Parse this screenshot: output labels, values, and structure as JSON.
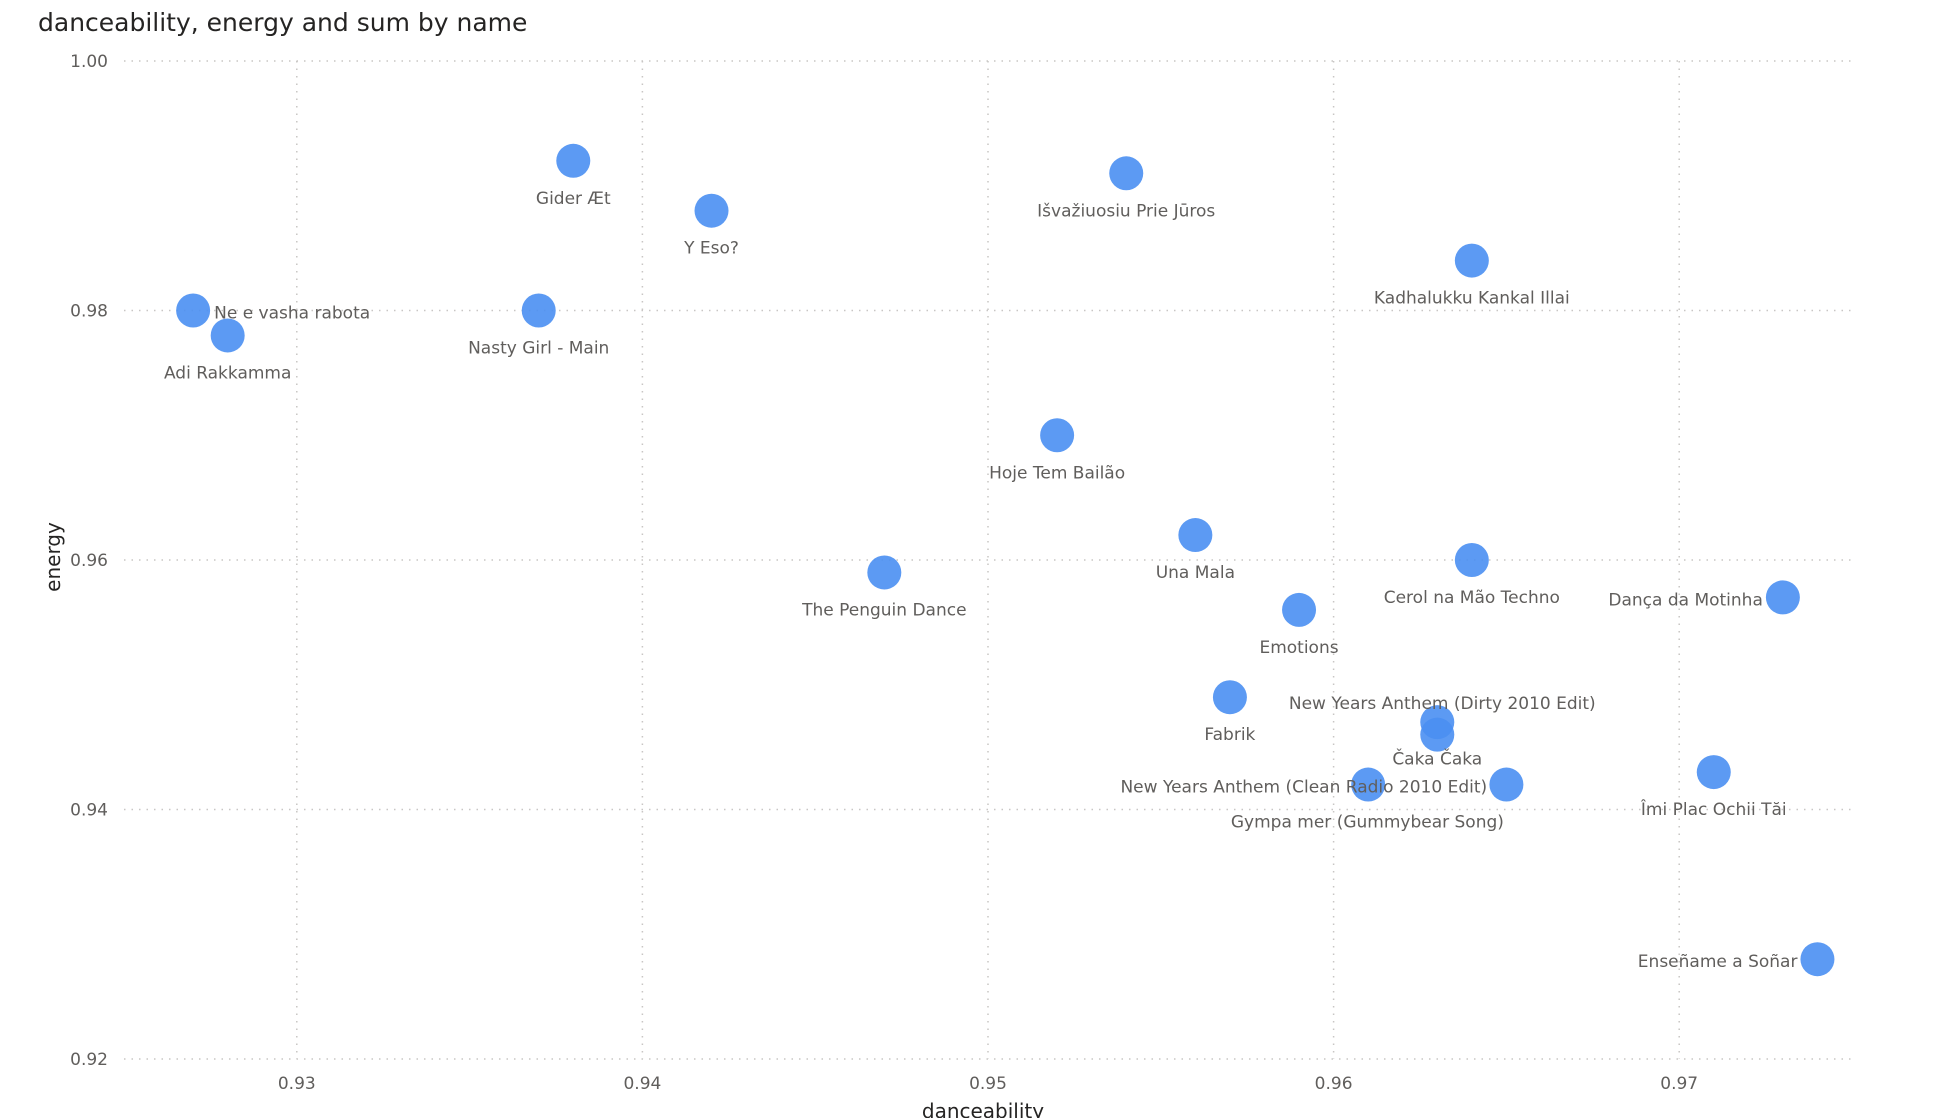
{
  "chart_data": {
    "type": "scatter",
    "title": "danceability, energy and sum by name",
    "xlabel": "danceability",
    "ylabel": "energy",
    "xlim": [
      0.925,
      0.975
    ],
    "ylim": [
      0.92,
      1.0
    ],
    "xticks": [
      "0.93",
      "0.94",
      "0.95",
      "0.96",
      "0.97"
    ],
    "yticks": [
      "0.92",
      "0.94",
      "0.96",
      "0.98",
      "1.00"
    ],
    "grid": true,
    "point_color": "#4a8ff2",
    "points": [
      {
        "name": "Gider Æt",
        "x": 0.938,
        "y": 0.992
      },
      {
        "name": "Y Eso?",
        "x": 0.942,
        "y": 0.988
      },
      {
        "name": "Išvažiuosiu Prie Jūros",
        "x": 0.954,
        "y": 0.991
      },
      {
        "name": "Kadhalukku Kankal Illai",
        "x": 0.964,
        "y": 0.984
      },
      {
        "name": "Ne e vasha rabota",
        "x": 0.927,
        "y": 0.98
      },
      {
        "name": "Adi Rakkamma",
        "x": 0.928,
        "y": 0.978
      },
      {
        "name": "Nasty Girl - Main",
        "x": 0.937,
        "y": 0.98
      },
      {
        "name": "Hoje Tem Bailão",
        "x": 0.952,
        "y": 0.97
      },
      {
        "name": "Una Mala",
        "x": 0.956,
        "y": 0.962
      },
      {
        "name": "The Penguin Dance",
        "x": 0.947,
        "y": 0.959
      },
      {
        "name": "Cerol na Mão Techno",
        "x": 0.964,
        "y": 0.96
      },
      {
        "name": "Dança da Motinha",
        "x": 0.973,
        "y": 0.957
      },
      {
        "name": "Emotions",
        "x": 0.959,
        "y": 0.956
      },
      {
        "name": "Fabrik",
        "x": 0.957,
        "y": 0.949
      },
      {
        "name": "New Years Anthem (Dirty 2010 Edit)",
        "x": 0.963,
        "y": 0.947
      },
      {
        "name": "Čaka Čaka",
        "x": 0.963,
        "y": 0.946
      },
      {
        "name": "New Years Anthem (Clean Radio 2010 Edit)",
        "x": 0.961,
        "y": 0.942
      },
      {
        "name": "Gympa mer (Gummybear Song)",
        "x": 0.965,
        "y": 0.942
      },
      {
        "name": "Îmi Plac Ochii Tăi",
        "x": 0.971,
        "y": 0.943
      },
      {
        "name": "Enseñame a Soñar",
        "x": 0.974,
        "y": 0.928
      }
    ]
  }
}
